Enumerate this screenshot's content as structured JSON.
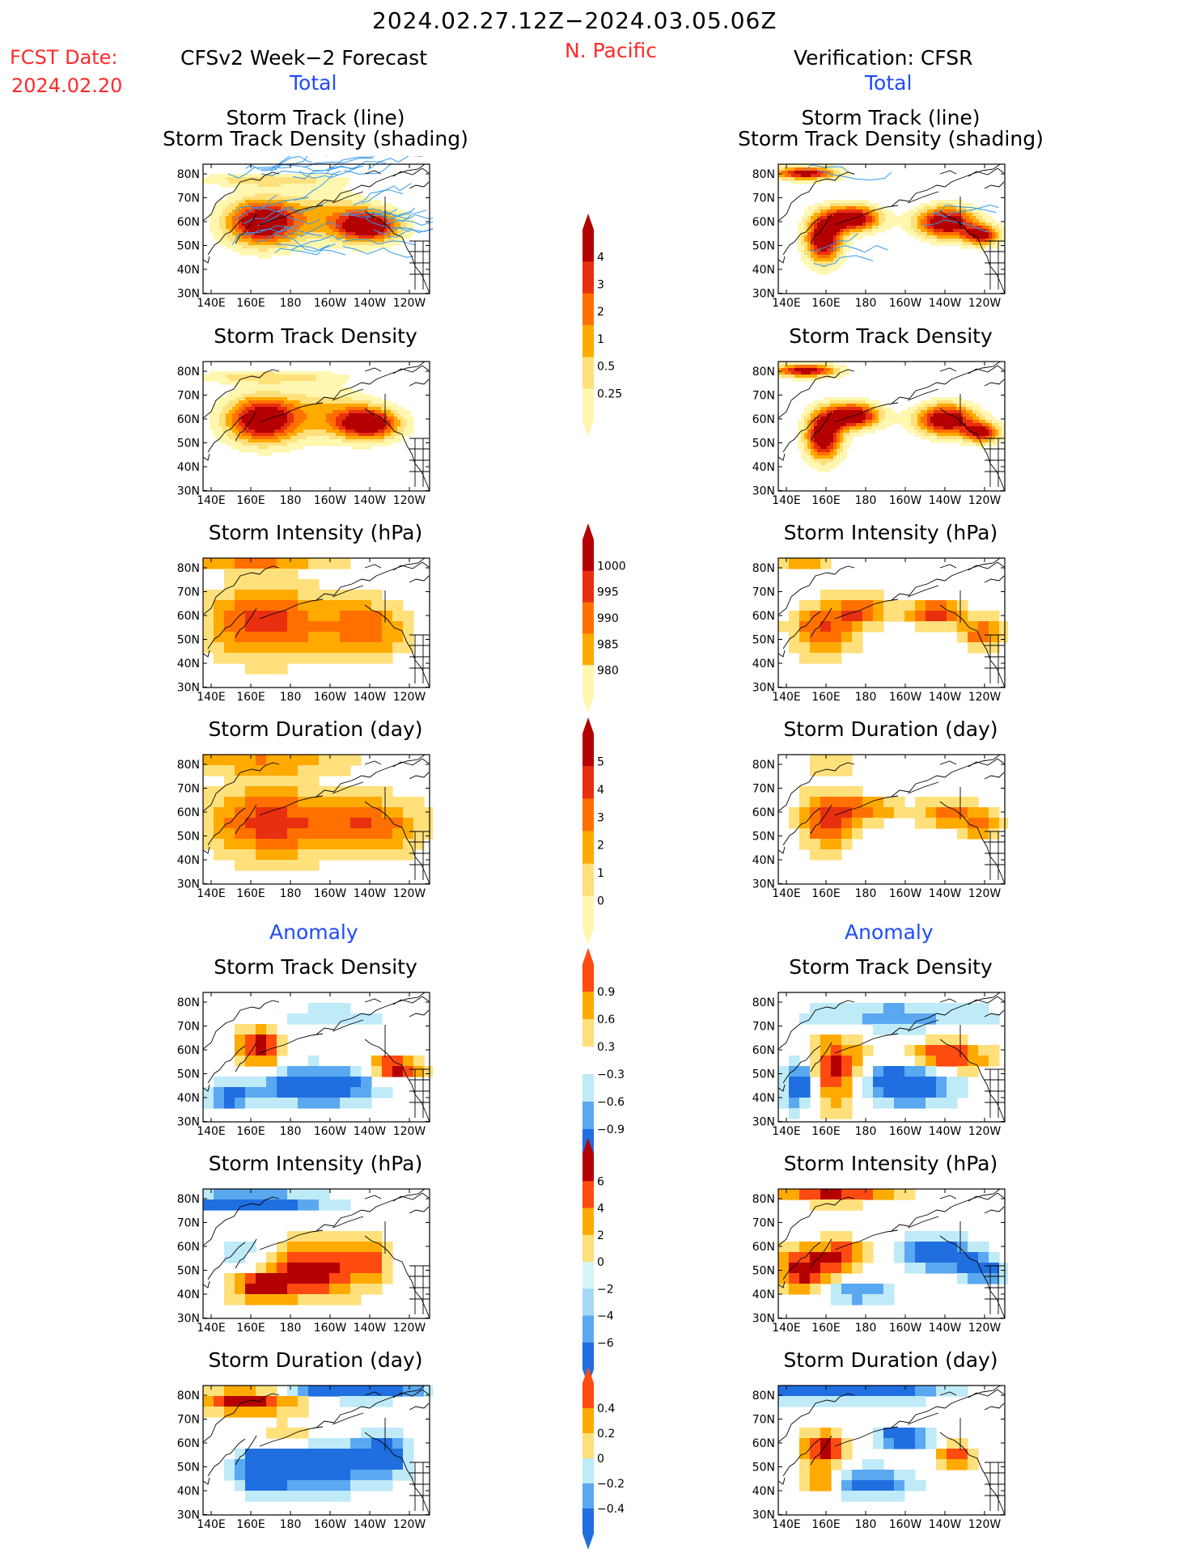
{
  "header": {
    "title": "2024.02.27.12Z−2024.03.05.06Z",
    "region": "N. Pacific",
    "fcst_label": "FCST Date:",
    "fcst_date": "2024.02.20",
    "left_heading": "CFSv2 Week−2 Forecast",
    "right_heading": "Verification: CFSR",
    "total_label": "Total",
    "anomaly_label": "Anomaly"
  },
  "panel_titles": {
    "track_line": "Storm Track (line)",
    "track_density_shading": "Storm Track Density (shading)",
    "track_density": "Storm Track Density",
    "intensity": "Storm Intensity (hPa)",
    "duration": "Storm Duration (day)"
  },
  "axes": {
    "lon_ticks": [
      "140E",
      "160E",
      "180",
      "160W",
      "140W",
      "120W"
    ],
    "lat_ticks": [
      "80N",
      "70N",
      "60N",
      "50N",
      "40N",
      "30N"
    ]
  },
  "colorbars": {
    "density_total": {
      "labels": [
        "4",
        "3",
        "2",
        "1",
        "0.5",
        "0.25"
      ],
      "colors": [
        "#fff7b0",
        "#ffe07a",
        "#ffaa00",
        "#ff7000",
        "#e83010",
        "#b40000"
      ]
    },
    "intensity_total": {
      "labels": [
        "1000",
        "995",
        "990",
        "985",
        "980"
      ],
      "colors": [
        "#fff7b0",
        "#ffaa00",
        "#ff7000",
        "#e83010",
        "#b40000"
      ]
    },
    "duration_total": {
      "labels": [
        "5",
        "4",
        "3",
        "2",
        "1",
        "0"
      ],
      "colors": [
        "#fff7b0",
        "#ffe07a",
        "#ffaa00",
        "#ff7000",
        "#e83010",
        "#b40000"
      ]
    },
    "density_anom": {
      "labels": [
        "0.9",
        "0.6",
        "0.3",
        "−0.3",
        "−0.6",
        "−0.9"
      ],
      "colors": [
        "#1f6fe0",
        "#5aa8f0",
        "#bfeaf8",
        "#ffffff",
        "#ffe07a",
        "#ffaa00",
        "#ff4a10"
      ]
    },
    "intensity_anom": {
      "labels": [
        "6",
        "4",
        "2",
        "0",
        "−2",
        "−4",
        "−6"
      ],
      "colors": [
        "#1f6fe0",
        "#5aa8f0",
        "#a8d8f8",
        "#d8f4fb",
        "#ffe07a",
        "#ffaa00",
        "#ff4a10",
        "#b40000"
      ]
    },
    "duration_anom": {
      "labels": [
        "0.4",
        "0.2",
        "0",
        "−0.2",
        "−0.4"
      ],
      "colors": [
        "#1f6fe0",
        "#5aa8f0",
        "#bfeaf8",
        "#ffe07a",
        "#ffaa00",
        "#ff4a10"
      ]
    }
  }
}
